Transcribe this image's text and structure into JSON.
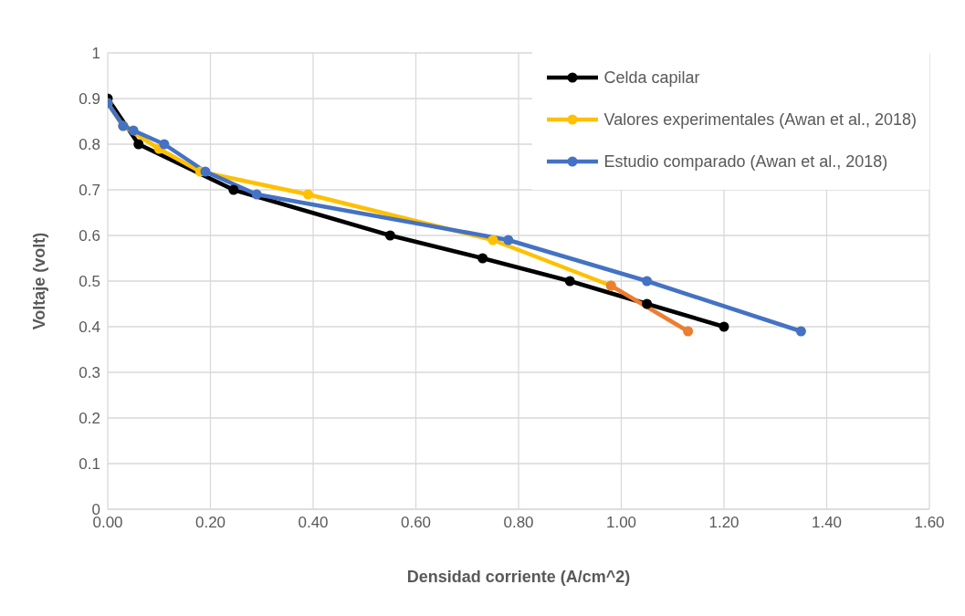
{
  "chart_data": {
    "type": "line",
    "xlabel": "Densidad corriente (A/cm^2)",
    "ylabel": "Voltaje (volt)",
    "xlim": [
      0,
      1.6
    ],
    "xticks": [
      {
        "value": 0,
        "label": "0.00"
      },
      {
        "value": 0.2,
        "label": "0.20"
      },
      {
        "value": 0.4,
        "label": "0.40"
      },
      {
        "value": 0.6,
        "label": "0.60"
      },
      {
        "value": 0.8,
        "label": "0.80"
      },
      {
        "value": 1,
        "label": "1.00"
      },
      {
        "value": 1.2,
        "label": "1.20"
      },
      {
        "value": 1.4,
        "label": "1.40"
      },
      {
        "value": 1.6,
        "label": "1.60"
      }
    ],
    "ylim": [
      0,
      1
    ],
    "yticks": [
      0,
      0.1,
      0.2,
      0.3,
      0.4,
      0.5,
      0.6,
      0.7,
      0.8,
      0.9,
      1
    ],
    "grid": true,
    "legend": "top right",
    "marker": "circle",
    "line_style": "solid",
    "series": [
      {
        "name": "Celda capilar",
        "color": "#000000",
        "x": [
          0,
          0.06,
          0.245,
          0.55,
          0.73,
          0.9,
          1.05,
          1.2
        ],
        "values": [
          0.9,
          0.8,
          0.7,
          0.6,
          0.55,
          0.5,
          0.45,
          0.4
        ]
      },
      {
        "name": "Valores experimentales (Awan et al., 2018)",
        "color": "#ffc000",
        "x": [
          0,
          0.03,
          0.1,
          0.18,
          0.39,
          0.75,
          0.98
        ],
        "values": [
          0.89,
          0.84,
          0.79,
          0.74,
          0.69,
          0.59,
          0.49
        ]
      },
      {
        "color": "#ed7d31",
        "x": [
          0.98,
          1.13
        ],
        "values": [
          0.49,
          0.39
        ]
      },
      {
        "name": "Estudio comparado (Awan et al., 2018)",
        "color": "#4472c4",
        "x": [
          0,
          0.03,
          0.05,
          0.11,
          0.19,
          0.29,
          0.78,
          1.05,
          1.35
        ],
        "values": [
          0.89,
          0.84,
          0.83,
          0.8,
          0.74,
          0.69,
          0.59,
          0.5,
          0.39
        ]
      }
    ]
  }
}
